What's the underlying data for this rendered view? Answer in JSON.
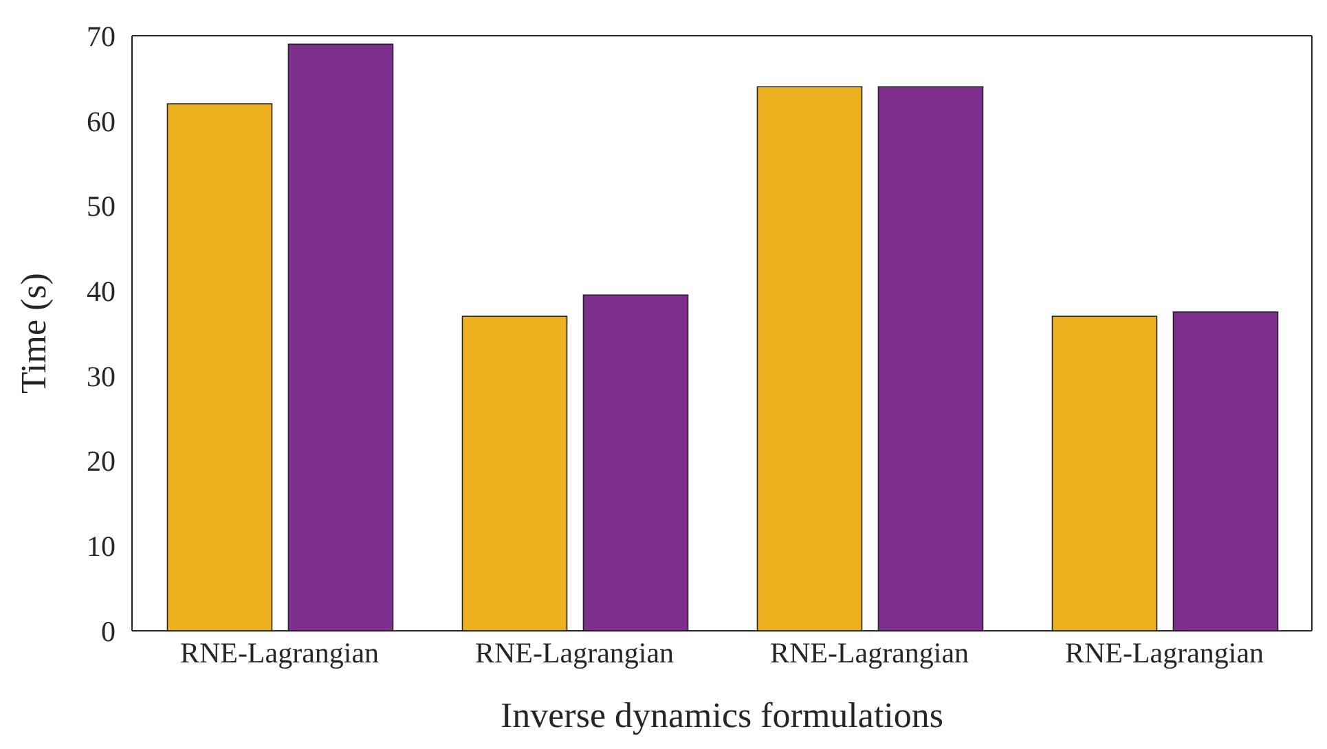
{
  "chart_data": {
    "type": "bar",
    "xlabel": "Inverse dynamics formulations",
    "ylabel": "Time (s)",
    "categories": [
      "RNE-Lagrangian",
      "RNE-Lagrangian",
      "RNE-Lagrangian",
      "RNE-Lagrangian"
    ],
    "series": [
      {
        "color": "#edb120",
        "values": [
          62,
          37,
          64,
          37
        ]
      },
      {
        "color": "#7e2f8e",
        "values": [
          69,
          39.5,
          64,
          37.5
        ]
      }
    ],
    "ylim": [
      0,
      70
    ],
    "yticks": [
      0,
      10,
      20,
      30,
      40,
      50,
      60,
      70
    ],
    "grid": false,
    "legend": false
  }
}
